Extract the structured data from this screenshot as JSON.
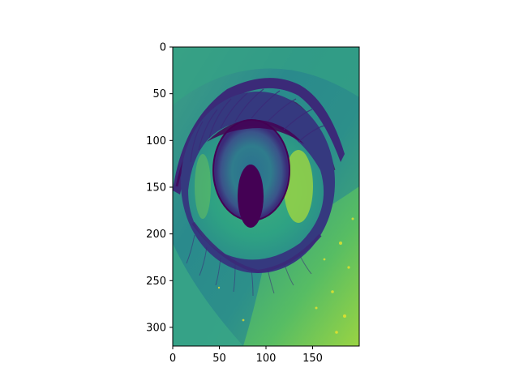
{
  "chart_data": {
    "type": "heatmap",
    "title": "",
    "xlabel": "",
    "ylabel": "",
    "colormap": "viridis",
    "image_width": 200,
    "image_height": 320,
    "xlim": [
      0,
      200
    ],
    "ylim": [
      320,
      0
    ],
    "x_ticks": [
      0,
      50,
      100,
      150
    ],
    "y_ticks": [
      0,
      50,
      100,
      150,
      200,
      250,
      300
    ],
    "x_tick_labels": [
      "0",
      "50",
      "100",
      "150"
    ],
    "y_tick_labels": [
      "0",
      "50",
      "100",
      "150",
      "200",
      "250",
      "300"
    ],
    "subject": "eye",
    "colors": {
      "dark": "#440154",
      "deep_purple": "#3b2a78",
      "blue": "#31688e",
      "teal": "#21918c",
      "green": "#35b779",
      "light_green": "#90d743",
      "yellow": "#fde725"
    }
  }
}
